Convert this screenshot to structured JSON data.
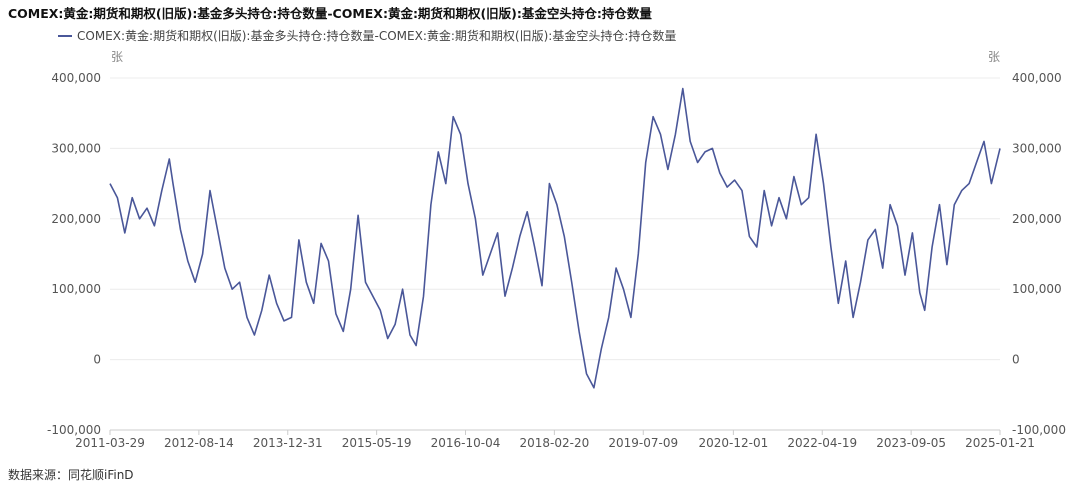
{
  "header": {
    "title": "COMEX:黄金:期货和期权(旧版):基金多头持仓:持仓数量-COMEX:黄金:期货和期权(旧版):基金空头持仓:持仓数量",
    "legend_label": "COMEX:黄金:期货和期权(旧版):基金多头持仓:持仓数量-COMEX:黄金:期货和期权(旧版):基金空头持仓:持仓数量"
  },
  "units": {
    "left": "张",
    "right": "张"
  },
  "footer": {
    "source": "数据来源：同花顺iFinD"
  },
  "colors": {
    "line": "#4a5799",
    "grid": "#ececec",
    "axis": "#cccccc"
  },
  "chart_data": {
    "type": "line",
    "title": "COMEX:黄金:期货和期权(旧版):基金多头持仓:持仓数量-COMEX:黄金:期货和期权(旧版):基金空头持仓:持仓数量",
    "xlabel": "",
    "ylabel": "张",
    "ylabel_right": "张",
    "ylim": [
      -100000,
      400000
    ],
    "yticks": [
      -100000,
      0,
      100000,
      200000,
      300000,
      400000
    ],
    "ytick_labels": [
      "-100,000",
      "0",
      "100,000",
      "200,000",
      "300,000",
      "400,000"
    ],
    "xlim": [
      "2011-03-29",
      "2025-01-21"
    ],
    "xtick_labels": [
      "2011-03-29",
      "2012-08-14",
      "2013-12-31",
      "2015-05-19",
      "2016-10-04",
      "2018-02-20",
      "2019-07-09",
      "2020-12-01",
      "2022-04-19",
      "2023-09-05",
      "2025-01-21"
    ],
    "grid": true,
    "legend_position": "top-left",
    "series": [
      {
        "name": "COMEX:黄金:期货和期权(旧版):基金多头持仓:持仓数量-COMEX:黄金:期货和期权(旧版):基金空头持仓:持仓数量",
        "points": [
          [
            "2011-03-29",
            250000
          ],
          [
            "2011-05-10",
            230000
          ],
          [
            "2011-06-21",
            180000
          ],
          [
            "2011-08-02",
            230000
          ],
          [
            "2011-09-13",
            200000
          ],
          [
            "2011-10-25",
            215000
          ],
          [
            "2011-12-06",
            190000
          ],
          [
            "2012-01-17",
            240000
          ],
          [
            "2012-02-28",
            285000
          ],
          [
            "2012-03-20",
            250000
          ],
          [
            "2012-05-01",
            185000
          ],
          [
            "2012-06-12",
            140000
          ],
          [
            "2012-07-24",
            110000
          ],
          [
            "2012-09-04",
            150000
          ],
          [
            "2012-10-16",
            240000
          ],
          [
            "2012-11-27",
            185000
          ],
          [
            "2013-01-08",
            130000
          ],
          [
            "2013-02-19",
            100000
          ],
          [
            "2013-04-02",
            110000
          ],
          [
            "2013-05-14",
            60000
          ],
          [
            "2013-06-25",
            35000
          ],
          [
            "2013-08-06",
            70000
          ],
          [
            "2013-09-17",
            120000
          ],
          [
            "2013-10-29",
            80000
          ],
          [
            "2013-12-10",
            55000
          ],
          [
            "2014-01-21",
            60000
          ],
          [
            "2014-03-04",
            170000
          ],
          [
            "2014-04-15",
            110000
          ],
          [
            "2014-05-27",
            80000
          ],
          [
            "2014-07-08",
            165000
          ],
          [
            "2014-08-19",
            140000
          ],
          [
            "2014-09-30",
            65000
          ],
          [
            "2014-11-11",
            40000
          ],
          [
            "2014-12-23",
            100000
          ],
          [
            "2015-02-03",
            205000
          ],
          [
            "2015-03-17",
            110000
          ],
          [
            "2015-04-28",
            90000
          ],
          [
            "2015-06-09",
            70000
          ],
          [
            "2015-07-21",
            30000
          ],
          [
            "2015-09-01",
            50000
          ],
          [
            "2015-10-13",
            100000
          ],
          [
            "2015-11-24",
            35000
          ],
          [
            "2015-12-29",
            20000
          ],
          [
            "2016-02-09",
            90000
          ],
          [
            "2016-03-22",
            220000
          ],
          [
            "2016-05-03",
            295000
          ],
          [
            "2016-06-14",
            250000
          ],
          [
            "2016-07-26",
            345000
          ],
          [
            "2016-09-06",
            320000
          ],
          [
            "2016-10-18",
            250000
          ],
          [
            "2016-11-29",
            200000
          ],
          [
            "2017-01-10",
            120000
          ],
          [
            "2017-02-21",
            150000
          ],
          [
            "2017-04-04",
            180000
          ],
          [
            "2017-05-16",
            90000
          ],
          [
            "2017-06-27",
            130000
          ],
          [
            "2017-08-08",
            175000
          ],
          [
            "2017-09-19",
            210000
          ],
          [
            "2017-10-31",
            160000
          ],
          [
            "2017-12-12",
            105000
          ],
          [
            "2018-01-23",
            250000
          ],
          [
            "2018-03-06",
            220000
          ],
          [
            "2018-04-17",
            175000
          ],
          [
            "2018-05-29",
            110000
          ],
          [
            "2018-07-10",
            40000
          ],
          [
            "2018-08-21",
            -20000
          ],
          [
            "2018-10-02",
            -40000
          ],
          [
            "2018-11-13",
            15000
          ],
          [
            "2018-12-25",
            60000
          ],
          [
            "2019-02-05",
            130000
          ],
          [
            "2019-03-19",
            100000
          ],
          [
            "2019-04-30",
            60000
          ],
          [
            "2019-06-11",
            150000
          ],
          [
            "2019-07-23",
            280000
          ],
          [
            "2019-09-03",
            345000
          ],
          [
            "2019-10-15",
            320000
          ],
          [
            "2019-11-26",
            270000
          ],
          [
            "2020-01-07",
            320000
          ],
          [
            "2020-02-18",
            385000
          ],
          [
            "2020-03-31",
            310000
          ],
          [
            "2020-05-12",
            280000
          ],
          [
            "2020-06-23",
            295000
          ],
          [
            "2020-08-04",
            300000
          ],
          [
            "2020-09-15",
            265000
          ],
          [
            "2020-10-27",
            245000
          ],
          [
            "2020-12-08",
            255000
          ],
          [
            "2021-01-19",
            240000
          ],
          [
            "2021-03-02",
            175000
          ],
          [
            "2021-04-13",
            160000
          ],
          [
            "2021-05-25",
            240000
          ],
          [
            "2021-07-06",
            190000
          ],
          [
            "2021-08-17",
            230000
          ],
          [
            "2021-09-28",
            200000
          ],
          [
            "2021-11-09",
            260000
          ],
          [
            "2021-12-21",
            220000
          ],
          [
            "2022-02-01",
            230000
          ],
          [
            "2022-03-15",
            320000
          ],
          [
            "2022-04-26",
            250000
          ],
          [
            "2022-06-07",
            160000
          ],
          [
            "2022-07-19",
            80000
          ],
          [
            "2022-08-30",
            140000
          ],
          [
            "2022-10-11",
            60000
          ],
          [
            "2022-11-22",
            110000
          ],
          [
            "2023-01-03",
            170000
          ],
          [
            "2023-02-14",
            185000
          ],
          [
            "2023-03-28",
            130000
          ],
          [
            "2023-05-09",
            220000
          ],
          [
            "2023-06-20",
            190000
          ],
          [
            "2023-08-01",
            120000
          ],
          [
            "2023-09-12",
            180000
          ],
          [
            "2023-10-24",
            95000
          ],
          [
            "2023-11-21",
            70000
          ],
          [
            "2024-01-02",
            160000
          ],
          [
            "2024-02-13",
            220000
          ],
          [
            "2024-03-26",
            135000
          ],
          [
            "2024-05-07",
            220000
          ],
          [
            "2024-06-18",
            240000
          ],
          [
            "2024-07-30",
            250000
          ],
          [
            "2024-09-10",
            280000
          ],
          [
            "2024-10-22",
            310000
          ],
          [
            "2024-12-03",
            250000
          ],
          [
            "2025-01-21",
            300000
          ]
        ]
      }
    ]
  }
}
